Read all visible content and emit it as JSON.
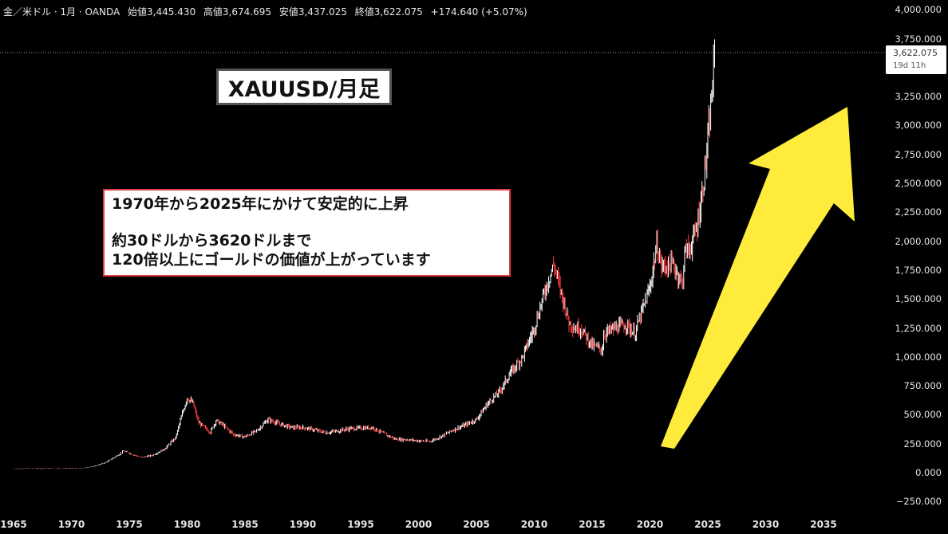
{
  "header": {
    "symbol": "金／米ドル · 1月 · OANDA",
    "open": "始値3,445.430",
    "high": "高値3,674.695",
    "low": "安値3,437.025",
    "close": "終値3,622.075",
    "change": "+174.640 (+5.07%)"
  },
  "price_tag": {
    "price": "3,622.075",
    "countdown": "19d 11h"
  },
  "annotations": {
    "title": "XAUUSD/月足",
    "note_line1": "1970年から2025年にかけて安定的に上昇",
    "note_line2": "約30ドルから3620ドルまで",
    "note_line3": "120倍以上にゴールドの価値が上がっています"
  },
  "colors": {
    "background": "#000000",
    "up": "#ffffff",
    "down": "#ff3b3b",
    "arrow": "#ffeb3b",
    "note_border": "#e03a3a"
  },
  "chart_data": {
    "type": "line",
    "ylim": [
      -250,
      4000
    ],
    "xlim": [
      1965,
      2037
    ],
    "y_ticks": [
      "4,000.000",
      "3,750.000",
      "3,250.000",
      "3,000.000",
      "2,750.000",
      "2,500.000",
      "2,250.000",
      "2,000.000",
      "1,750.000",
      "1,500.000",
      "1,250.000",
      "1,000.000",
      "750.000",
      "500.000",
      "250.000",
      "0.000",
      "−250.000"
    ],
    "y_tick_values": [
      4000,
      3750,
      3250,
      3000,
      2750,
      2500,
      2250,
      2000,
      1750,
      1500,
      1250,
      1000,
      750,
      500,
      250,
      0,
      -250
    ],
    "x_ticks": [
      "1965",
      "1970",
      "1975",
      "1980",
      "1985",
      "1990",
      "1995",
      "2000",
      "2005",
      "2010",
      "2015",
      "2020",
      "2025",
      "2030",
      "2035"
    ],
    "x_tick_values": [
      1965,
      1970,
      1975,
      1980,
      1985,
      1990,
      1995,
      2000,
      2005,
      2010,
      2015,
      2020,
      2025,
      2030,
      2035
    ],
    "series": [
      {
        "x": [
          1965,
          1968,
          1970,
          1971,
          1972,
          1973,
          1974,
          1974.5,
          1975,
          1976,
          1977,
          1978,
          1979,
          1979.5,
          1980,
          1980.5,
          1981,
          1982,
          1982.5,
          1983,
          1984,
          1985,
          1986,
          1987,
          1988,
          1989,
          1990,
          1991,
          1992,
          1993,
          1994,
          1995,
          1996,
          1997,
          1998,
          1999,
          2000,
          2001,
          2002,
          2003,
          2004,
          2005,
          2006,
          2007,
          2008,
          2009,
          2010,
          2011,
          2011.7,
          2012,
          2013,
          2013.5,
          2014,
          2015,
          2015.9,
          2016,
          2017,
          2018,
          2018.7,
          2019,
          2019.5,
          2020,
          2020.6,
          2021,
          2022,
          2022.8,
          2023,
          2023.5,
          2024,
          2024.5,
          2025,
          2025.3,
          2025.6
        ],
        "y": [
          35,
          36,
          36,
          40,
          55,
          90,
          150,
          185,
          170,
          130,
          150,
          200,
          300,
          480,
          650,
          600,
          430,
          350,
          450,
          420,
          330,
          310,
          360,
          460,
          420,
          390,
          390,
          370,
          345,
          360,
          380,
          385,
          390,
          335,
          290,
          285,
          275,
          270,
          315,
          370,
          410,
          460,
          600,
          700,
          870,
          1000,
          1250,
          1600,
          1800,
          1680,
          1300,
          1250,
          1250,
          1100,
          1060,
          1200,
          1250,
          1280,
          1200,
          1300,
          1450,
          1600,
          1970,
          1780,
          1800,
          1630,
          1900,
          1950,
          2100,
          2400,
          2850,
          3200,
          3622
        ]
      }
    ]
  }
}
